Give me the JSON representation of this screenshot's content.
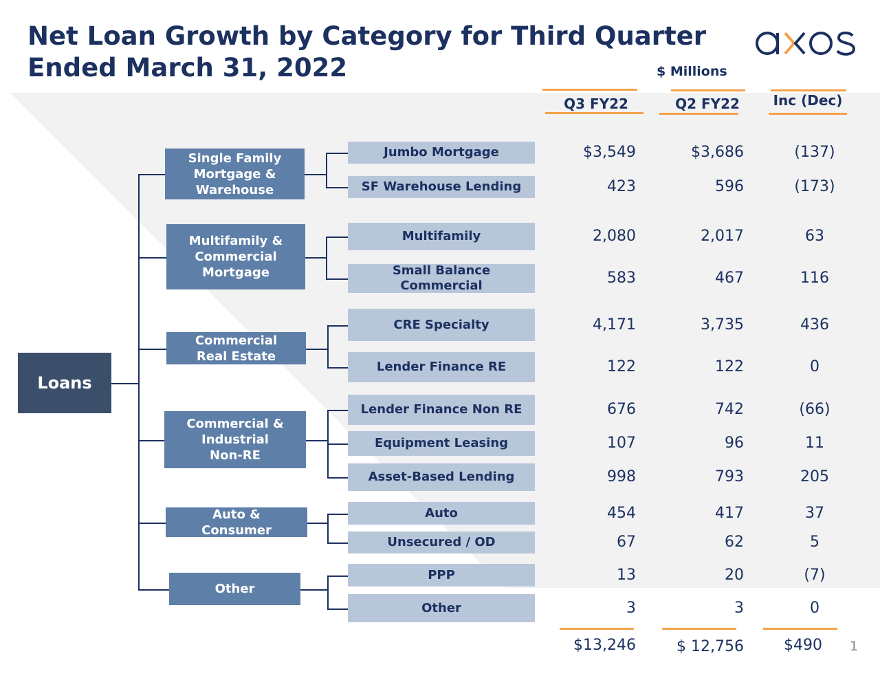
{
  "title_line1": "Net Loan Growth by Category for Third Quarter",
  "title_line2": "Ended March 31, 2022",
  "units": "$ Millions",
  "logo": "axos",
  "page_number": "1",
  "columns": [
    "Q3 FY22",
    "Q2 FY22",
    "Inc (Dec)"
  ],
  "colors": {
    "navy": "#1c3160",
    "root_box": "#3b4f6b",
    "category_box": "#5e7fa8",
    "subcategory_box": "#b8c6da",
    "accent_orange": "#f4a24a",
    "band_gray": "#f2f2f3"
  },
  "root": "Loans",
  "categories": [
    {
      "label": "Single Family\nMortgage &\nWarehouse",
      "items": [
        {
          "label": "Jumbo Mortgage",
          "q3": "$3,549",
          "q2": "$3,686",
          "inc": "(137)"
        },
        {
          "label": "SF Warehouse Lending",
          "q3": "423",
          "q2": "596",
          "inc": "(173)"
        }
      ]
    },
    {
      "label": "Multifamily &\nCommercial\nMortgage",
      "items": [
        {
          "label": "Multifamily",
          "q3": "2,080",
          "q2": "2,017",
          "inc": "63"
        },
        {
          "label": "Small Balance\nCommercial",
          "q3": "583",
          "q2": "467",
          "inc": "116"
        }
      ]
    },
    {
      "label": "Commercial\nReal Estate",
      "items": [
        {
          "label": "CRE Specialty",
          "q3": "4,171",
          "q2": "3,735",
          "inc": "436"
        },
        {
          "label": "Lender Finance RE",
          "q3": "122",
          "q2": "122",
          "inc": "0"
        }
      ]
    },
    {
      "label": "Commercial &\nIndustrial\nNon-RE",
      "items": [
        {
          "label": "Lender Finance Non RE",
          "q3": "676",
          "q2": "742",
          "inc": "(66)"
        },
        {
          "label": "Equipment Leasing",
          "q3": "107",
          "q2": "96",
          "inc": "11"
        },
        {
          "label": "Asset-Based Lending",
          "q3": "998",
          "q2": "793",
          "inc": "205"
        }
      ]
    },
    {
      "label": "Auto &\nConsumer",
      "items": [
        {
          "label": "Auto",
          "q3": "454",
          "q2": "417",
          "inc": "37"
        },
        {
          "label": "Unsecured / OD",
          "q3": "67",
          "q2": "62",
          "inc": "5"
        }
      ]
    },
    {
      "label": "Other",
      "items": [
        {
          "label": "PPP",
          "q3": "13",
          "q2": "20",
          "inc": "(7)"
        },
        {
          "label": "Other",
          "q3": "3",
          "q2": "3",
          "inc": "0"
        }
      ]
    }
  ],
  "totals": {
    "q3": "$13,246",
    "q2": "$ 12,756",
    "inc": "$490"
  }
}
